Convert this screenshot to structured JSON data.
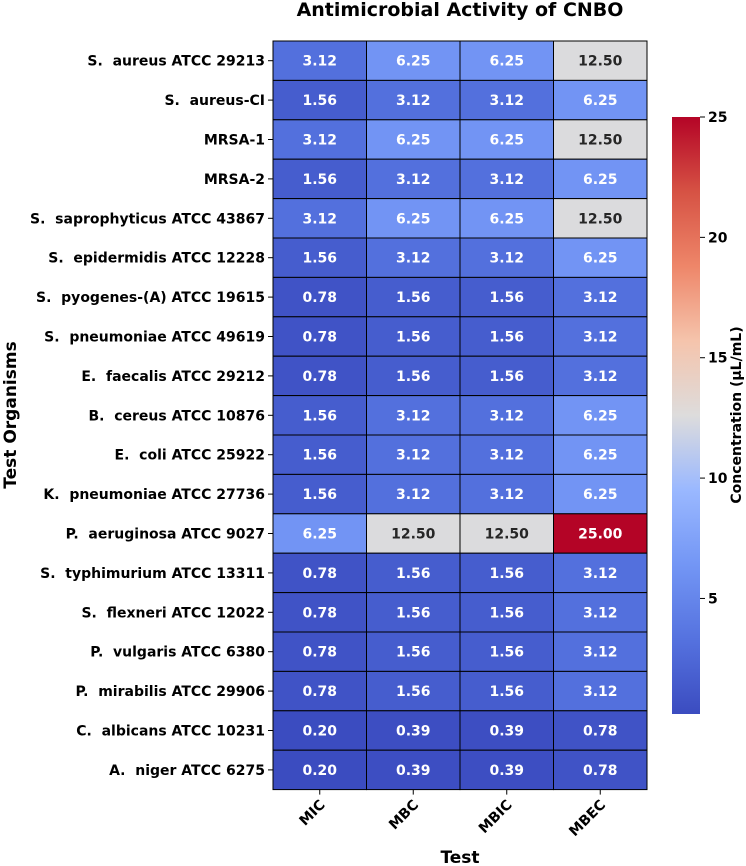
{
  "chart_data": {
    "type": "heatmap",
    "title": "Antimicrobial Activity of CNBO",
    "xlabel": "Test",
    "ylabel": "Test Organisms",
    "colorbar_label": "Concentration (µL/mL)",
    "colorbar_range": [
      0.2,
      25
    ],
    "colorbar_ticks": [
      5,
      10,
      15,
      20,
      25
    ],
    "colormap": "coolwarm",
    "colors": {
      "low": "#3b4cc0",
      "mid": "#dddcdc",
      "high": "#b40426"
    },
    "columns": [
      "MIC",
      "MBC",
      "MBIC",
      "MBEC"
    ],
    "rows": [
      "S.  aureus ATCC 29213",
      "S.  aureus-CI",
      "MRSA-1",
      "MRSA-2",
      "S.  saprophyticus ATCC 43867",
      "S.  epidermidis ATCC 12228",
      "S.  pyogenes-(A) ATCC 19615",
      "S.  pneumoniae ATCC 49619",
      "E.  faecalis ATCC 29212",
      "B.  cereus ATCC 10876",
      "E.  coli ATCC 25922",
      "K.  pneumoniae ATCC 27736",
      "P.  aeruginosa ATCC 9027",
      "S.  typhimurium ATCC 13311",
      "S.  flexneri ATCC 12022",
      "P.  vulgaris ATCC 6380",
      "P.  mirabilis ATCC 29906",
      "C.  albicans ATCC 10231",
      "A.  niger ATCC 6275"
    ],
    "values": [
      [
        3.12,
        6.25,
        6.25,
        12.5
      ],
      [
        1.56,
        3.12,
        3.12,
        6.25
      ],
      [
        3.12,
        6.25,
        6.25,
        12.5
      ],
      [
        1.56,
        3.12,
        3.12,
        6.25
      ],
      [
        3.12,
        6.25,
        6.25,
        12.5
      ],
      [
        1.56,
        3.12,
        3.12,
        6.25
      ],
      [
        0.78,
        1.56,
        1.56,
        3.12
      ],
      [
        0.78,
        1.56,
        1.56,
        3.12
      ],
      [
        0.78,
        1.56,
        1.56,
        3.12
      ],
      [
        1.56,
        3.12,
        3.12,
        6.25
      ],
      [
        1.56,
        3.12,
        3.12,
        6.25
      ],
      [
        1.56,
        3.12,
        3.12,
        6.25
      ],
      [
        6.25,
        12.5,
        12.5,
        25.0
      ],
      [
        0.78,
        1.56,
        1.56,
        3.12
      ],
      [
        0.78,
        1.56,
        1.56,
        3.12
      ],
      [
        0.78,
        1.56,
        1.56,
        3.12
      ],
      [
        0.78,
        1.56,
        1.56,
        3.12
      ],
      [
        0.2,
        0.39,
        0.39,
        0.78
      ],
      [
        0.2,
        0.39,
        0.39,
        0.78
      ]
    ],
    "value_labels": [
      [
        "3.12",
        "6.25",
        "6.25",
        "12.50"
      ],
      [
        "1.56",
        "3.12",
        "3.12",
        "6.25"
      ],
      [
        "3.12",
        "6.25",
        "6.25",
        "12.50"
      ],
      [
        "1.56",
        "3.12",
        "3.12",
        "6.25"
      ],
      [
        "3.12",
        "6.25",
        "6.25",
        "12.50"
      ],
      [
        "1.56",
        "3.12",
        "3.12",
        "6.25"
      ],
      [
        "0.78",
        "1.56",
        "1.56",
        "3.12"
      ],
      [
        "0.78",
        "1.56",
        "1.56",
        "3.12"
      ],
      [
        "0.78",
        "1.56",
        "1.56",
        "3.12"
      ],
      [
        "1.56",
        "3.12",
        "3.12",
        "6.25"
      ],
      [
        "1.56",
        "3.12",
        "3.12",
        "6.25"
      ],
      [
        "1.56",
        "3.12",
        "3.12",
        "6.25"
      ],
      [
        "6.25",
        "12.50",
        "12.50",
        "25.00"
      ],
      [
        "0.78",
        "1.56",
        "1.56",
        "3.12"
      ],
      [
        "0.78",
        "1.56",
        "1.56",
        "3.12"
      ],
      [
        "0.78",
        "1.56",
        "1.56",
        "3.12"
      ],
      [
        "0.78",
        "1.56",
        "1.56",
        "3.12"
      ],
      [
        "0.20",
        "0.39",
        "0.39",
        "0.78"
      ],
      [
        "0.20",
        "0.39",
        "0.39",
        "0.78"
      ]
    ]
  }
}
